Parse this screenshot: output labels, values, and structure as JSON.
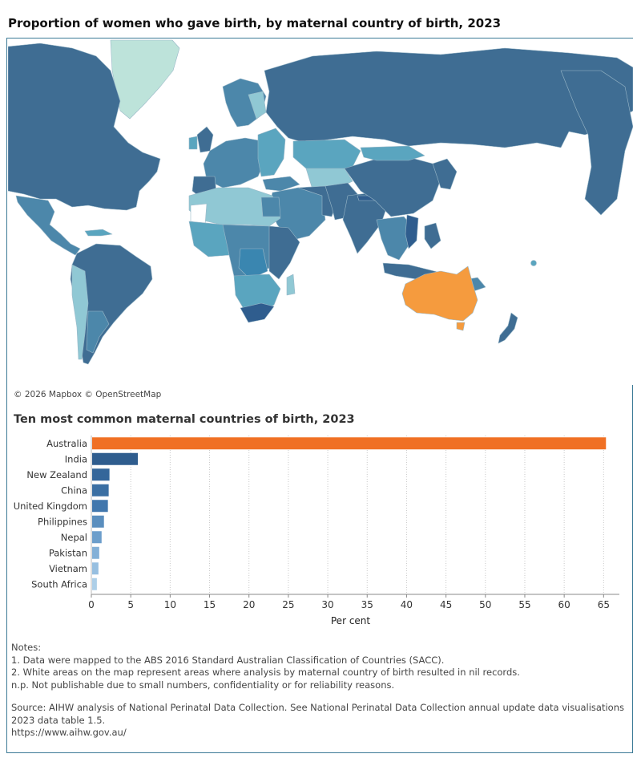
{
  "map_title": "Proportion of women who gave birth, by maternal country of birth, 2023",
  "attribution": "© 2026 Mapbox © OpenStreetMap",
  "legend_colors": {
    "highest": "#f59b3e",
    "dark": "#3f6d93",
    "mid": "#4c87aa",
    "teal": "#5aa5bf",
    "light": "#90c8d4",
    "lightest": "#bde3da",
    "no_data": "#ffffff"
  },
  "chart_title": "Ten most common maternal countries of birth, 2023",
  "chart_data": {
    "type": "bar",
    "orientation": "horizontal",
    "title": "Ten most common maternal countries of birth, 2023",
    "xlabel": "Per cent",
    "ylabel": "",
    "xlim": [
      0,
      67
    ],
    "xticks": [
      0,
      5,
      10,
      15,
      20,
      25,
      30,
      35,
      40,
      45,
      50,
      55,
      60,
      65
    ],
    "grid": "vertical dotted",
    "categories": [
      "Australia",
      "India",
      "New Zealand",
      "China",
      "United Kingdom",
      "Philippines",
      "Nepal",
      "Pakistan",
      "Vietnam",
      "South Africa"
    ],
    "values": [
      65.3,
      5.9,
      2.3,
      2.2,
      2.1,
      1.6,
      1.3,
      1.0,
      0.9,
      0.7
    ],
    "colors": [
      "#f07024",
      "#2f5d8e",
      "#34669a",
      "#3b6fa3",
      "#4177ad",
      "#5a8ebe",
      "#6c9ecb",
      "#83b0d7",
      "#97bfe0",
      "#adcfe8"
    ]
  },
  "notes": {
    "heading": "Notes:",
    "lines": [
      "1. Data were mapped to the ABS 2016 Standard Australian Classification of Countries (SACC).",
      "2. White areas on the map represent areas where analysis by maternal country of birth resulted in nil records.",
      "n.p. Not publishable due to small numbers, confidentiality or for reliability reasons."
    ],
    "source_line1": "Source: AIHW analysis of National Perinatal Data Collection. See National Perinatal Data Collection annual update data visualisations",
    "source_line2": "2023 data table 1.5.",
    "url": "https://www.aihw.gov.au/"
  }
}
